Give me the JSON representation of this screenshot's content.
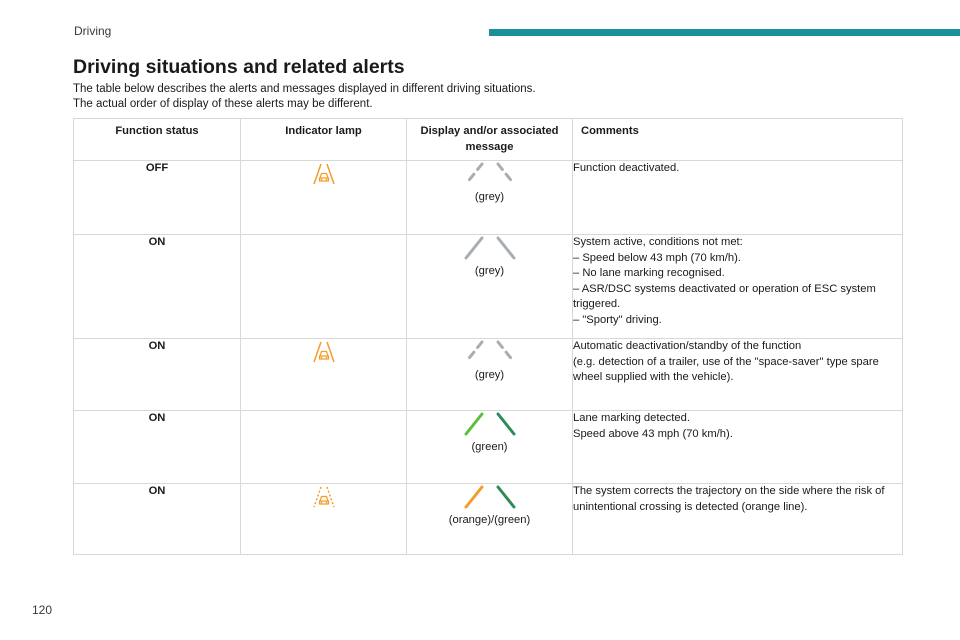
{
  "header": {
    "section_label": "Driving",
    "accent_color": "#1b8f9a"
  },
  "page": {
    "title": "Driving situations and related alerts",
    "intro_lines": [
      "The table below describes the alerts and messages displayed in different driving situations.",
      "The actual order of display of these alerts may be different."
    ],
    "page_number": "120"
  },
  "table": {
    "headers": {
      "status": "Function status",
      "lamp": "Indicator lamp",
      "display": "Display and/or associated message",
      "comments": "Comments"
    },
    "rows": [
      {
        "status": "OFF",
        "lamp": "lane-keeping-icon",
        "lamp_color": "#f39c2a",
        "lamp_style": "solid",
        "lines_style": "dashed",
        "left_line_color": "#a8adb2",
        "right_line_color": "#a8adb2",
        "display_caption": "(grey)",
        "comments": [
          " Function deactivated."
        ]
      },
      {
        "status": "ON",
        "lamp": "",
        "lamp_color": "",
        "lamp_style": "none",
        "lines_style": "solid",
        "left_line_color": "#a8adb2",
        "right_line_color": "#a8adb2",
        "display_caption": "(grey)",
        "comments": [
          "System active, conditions not met:",
          "–  Speed below 43 mph (70 km/h).",
          "–  No lane marking recognised.",
          "–  ASR/DSC systems deactivated or operation of ESC system triggered.",
          "–  \"Sporty\" driving."
        ]
      },
      {
        "status": "ON",
        "lamp": "lane-keeping-icon",
        "lamp_color": "#f39c2a",
        "lamp_style": "solid",
        "lines_style": "dashed",
        "left_line_color": "#a8adb2",
        "right_line_color": "#a8adb2",
        "display_caption": "(grey)",
        "comments": [
          "Automatic deactivation/standby of the function",
          "(e.g. detection of a trailer, use of the \"space-saver\" type spare wheel supplied with the vehicle)."
        ]
      },
      {
        "status": "ON",
        "lamp": "",
        "lamp_color": "",
        "lamp_style": "none",
        "lines_style": "solid",
        "left_line_color": "#5bbf3a",
        "right_line_color": "#2e8b57",
        "display_caption": "(green)",
        "comments": [
          "Lane marking detected.",
          "Speed above 43 mph (70 km/h)."
        ]
      },
      {
        "status": "ON",
        "lamp": "lane-keeping-active-icon",
        "lamp_color": "#f39c2a",
        "lamp_style": "active",
        "lines_style": "solid",
        "left_line_color": "#f39c2a",
        "right_line_color": "#2e8b57",
        "display_caption": "(orange)/(green)",
        "comments": [
          "The system corrects the trajectory on the side where the risk of unintentional crossing is detected (orange line)."
        ]
      }
    ]
  }
}
